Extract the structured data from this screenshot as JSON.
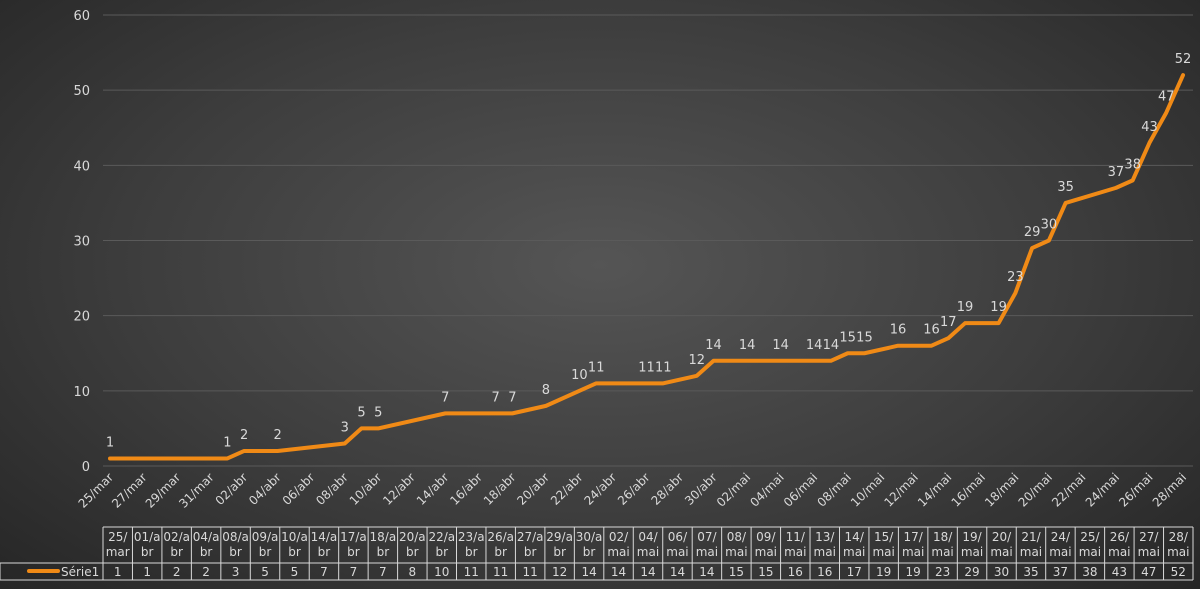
{
  "chart_data": {
    "type": "line",
    "title": "",
    "xlabel": "",
    "ylabel": "",
    "ylim": [
      0,
      60
    ],
    "y_ticks": [
      0,
      10,
      20,
      30,
      40,
      50,
      60
    ],
    "grid": true,
    "line_color": "#f08a16",
    "gridline_color": "#5a5a5a",
    "axis_tick_labels": [
      "25/mar",
      "27/mar",
      "29/mar",
      "31/mar",
      "02/abr",
      "04/abr",
      "06/abr",
      "08/abr",
      "10/abr",
      "12/abr",
      "14/abr",
      "16/abr",
      "18/abr",
      "20/abr",
      "22/abr",
      "24/abr",
      "26/abr",
      "28/abr",
      "30/abr",
      "02/mai",
      "04/mai",
      "06/mai",
      "08/mai",
      "10/mai",
      "12/mai",
      "14/mai",
      "16/mai",
      "18/mai",
      "20/mai",
      "22/mai",
      "24/mai",
      "26/mai",
      "28/mai"
    ],
    "points": [
      {
        "date": "25/mar",
        "value": 1
      },
      {
        "date": "01/abr",
        "value": 1
      },
      {
        "date": "02/abr",
        "value": 2
      },
      {
        "date": "04/abr",
        "value": 2
      },
      {
        "date": "08/abr",
        "value": 3
      },
      {
        "date": "09/abr",
        "value": 5
      },
      {
        "date": "10/abr",
        "value": 5
      },
      {
        "date": "14/abr",
        "value": 7
      },
      {
        "date": "17/abr",
        "value": 7
      },
      {
        "date": "18/abr",
        "value": 7
      },
      {
        "date": "20/abr",
        "value": 8
      },
      {
        "date": "22/abr",
        "value": 10
      },
      {
        "date": "23/abr",
        "value": 11
      },
      {
        "date": "26/abr",
        "value": 11
      },
      {
        "date": "27/abr",
        "value": 11
      },
      {
        "date": "29/abr",
        "value": 12
      },
      {
        "date": "30/abr",
        "value": 14
      },
      {
        "date": "02/mai",
        "value": 14
      },
      {
        "date": "04/mai",
        "value": 14
      },
      {
        "date": "06/mai",
        "value": 14
      },
      {
        "date": "07/mai",
        "value": 14
      },
      {
        "date": "08/mai",
        "value": 15
      },
      {
        "date": "09/mai",
        "value": 15
      },
      {
        "date": "11/mai",
        "value": 16
      },
      {
        "date": "13/mai",
        "value": 16
      },
      {
        "date": "14/mai",
        "value": 17
      },
      {
        "date": "15/mai",
        "value": 19
      },
      {
        "date": "17/mai",
        "value": 19
      },
      {
        "date": "18/mai",
        "value": 23
      },
      {
        "date": "19/mai",
        "value": 29
      },
      {
        "date": "20/mai",
        "value": 30
      },
      {
        "date": "21/mai",
        "value": 35
      },
      {
        "date": "24/mai",
        "value": 37
      },
      {
        "date": "25/mai",
        "value": 38
      },
      {
        "date": "26/mai",
        "value": 43
      },
      {
        "date": "27/mai",
        "value": 47
      },
      {
        "date": "28/mai",
        "value": 52
      }
    ],
    "data_table": {
      "series_name": "Série1",
      "columns": [
        [
          "25/",
          "mar"
        ],
        [
          "01/a",
          "br"
        ],
        [
          "02/a",
          "br"
        ],
        [
          "04/a",
          "br"
        ],
        [
          "08/a",
          "br"
        ],
        [
          "09/a",
          "br"
        ],
        [
          "10/a",
          "br"
        ],
        [
          "14/a",
          "br"
        ],
        [
          "17/a",
          "br"
        ],
        [
          "18/a",
          "br"
        ],
        [
          "20/a",
          "br"
        ],
        [
          "22/a",
          "br"
        ],
        [
          "23/a",
          "br"
        ],
        [
          "26/a",
          "br"
        ],
        [
          "27/a",
          "br"
        ],
        [
          "29/a",
          "br"
        ],
        [
          "30/a",
          "br"
        ],
        [
          "02/",
          "mai"
        ],
        [
          "04/",
          "mai"
        ],
        [
          "06/",
          "mai"
        ],
        [
          "07/",
          "mai"
        ],
        [
          "08/",
          "mai"
        ],
        [
          "09/",
          "mai"
        ],
        [
          "11/",
          "mai"
        ],
        [
          "13/",
          "mai"
        ],
        [
          "14/",
          "mai"
        ],
        [
          "15/",
          "mai"
        ],
        [
          "17/",
          "mai"
        ],
        [
          "18/",
          "mai"
        ],
        [
          "19/",
          "mai"
        ],
        [
          "20/",
          "mai"
        ],
        [
          "21/",
          "mai"
        ],
        [
          "24/",
          "mai"
        ],
        [
          "25/",
          "mai"
        ],
        [
          "26/",
          "mai"
        ],
        [
          "27/",
          "mai"
        ],
        [
          "28/",
          "mai"
        ]
      ],
      "values": [
        1,
        1,
        2,
        2,
        3,
        5,
        5,
        7,
        7,
        7,
        8,
        10,
        11,
        11,
        11,
        12,
        14,
        14,
        14,
        14,
        14,
        15,
        15,
        16,
        16,
        17,
        19,
        19,
        23,
        29,
        30,
        35,
        37,
        38,
        43,
        47,
        52
      ]
    }
  }
}
